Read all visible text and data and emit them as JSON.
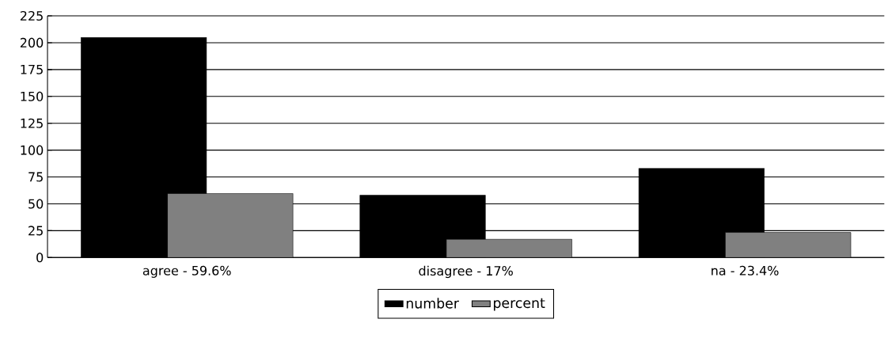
{
  "chart_data": {
    "type": "bar",
    "categories": [
      "agree - 59.6%",
      "disagree - 17%",
      "na - 23.4%"
    ],
    "series": [
      {
        "name": "number",
        "color": "#000000",
        "values": [
          205,
          58,
          83
        ]
      },
      {
        "name": "percent",
        "color": "#808080",
        "values": [
          59.6,
          17,
          23.4
        ]
      }
    ],
    "ylim": [
      0,
      225
    ],
    "yticks": [
      0,
      25,
      50,
      75,
      100,
      125,
      150,
      175,
      200,
      225
    ],
    "grid": "y",
    "legend": "bottom"
  }
}
